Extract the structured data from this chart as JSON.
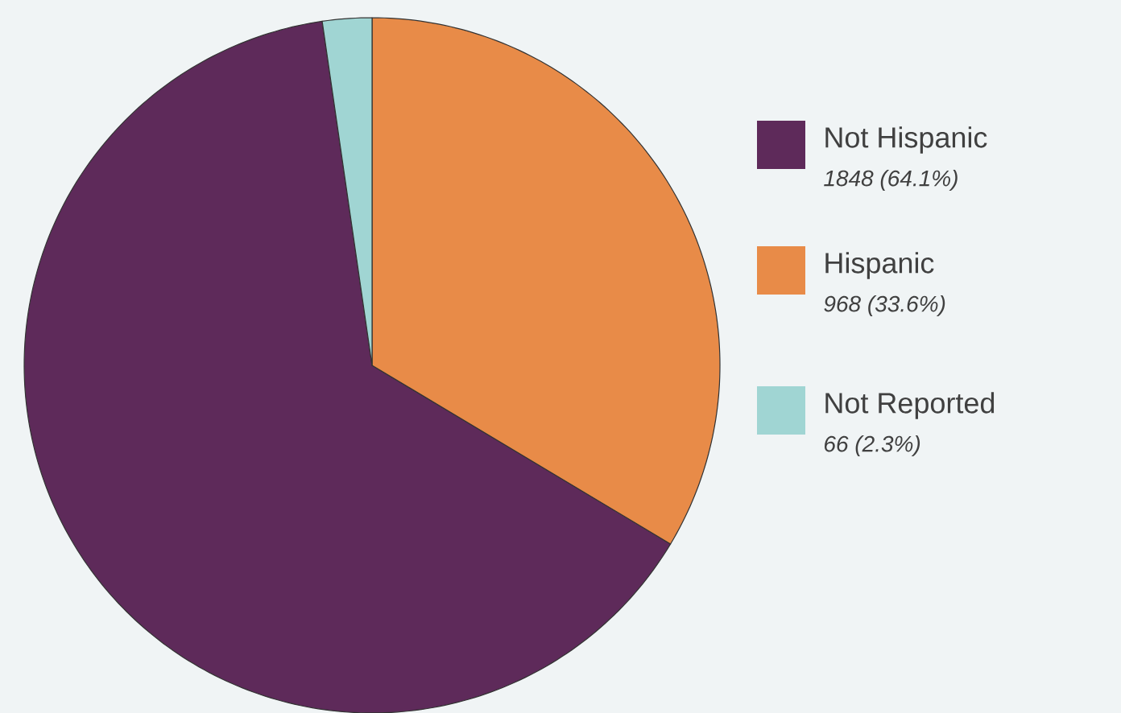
{
  "chart_data": {
    "type": "pie",
    "categories": [
      "Not Hispanic",
      "Hispanic",
      "Not Reported"
    ],
    "values": [
      1848,
      968,
      66
    ],
    "value_labels": [
      "1848 (64.1%)",
      "968 (33.6%)",
      "66 (2.3%)"
    ],
    "colors": [
      "#5e2a5a",
      "#e88b48",
      "#a0d5d3"
    ],
    "legend": "right"
  }
}
